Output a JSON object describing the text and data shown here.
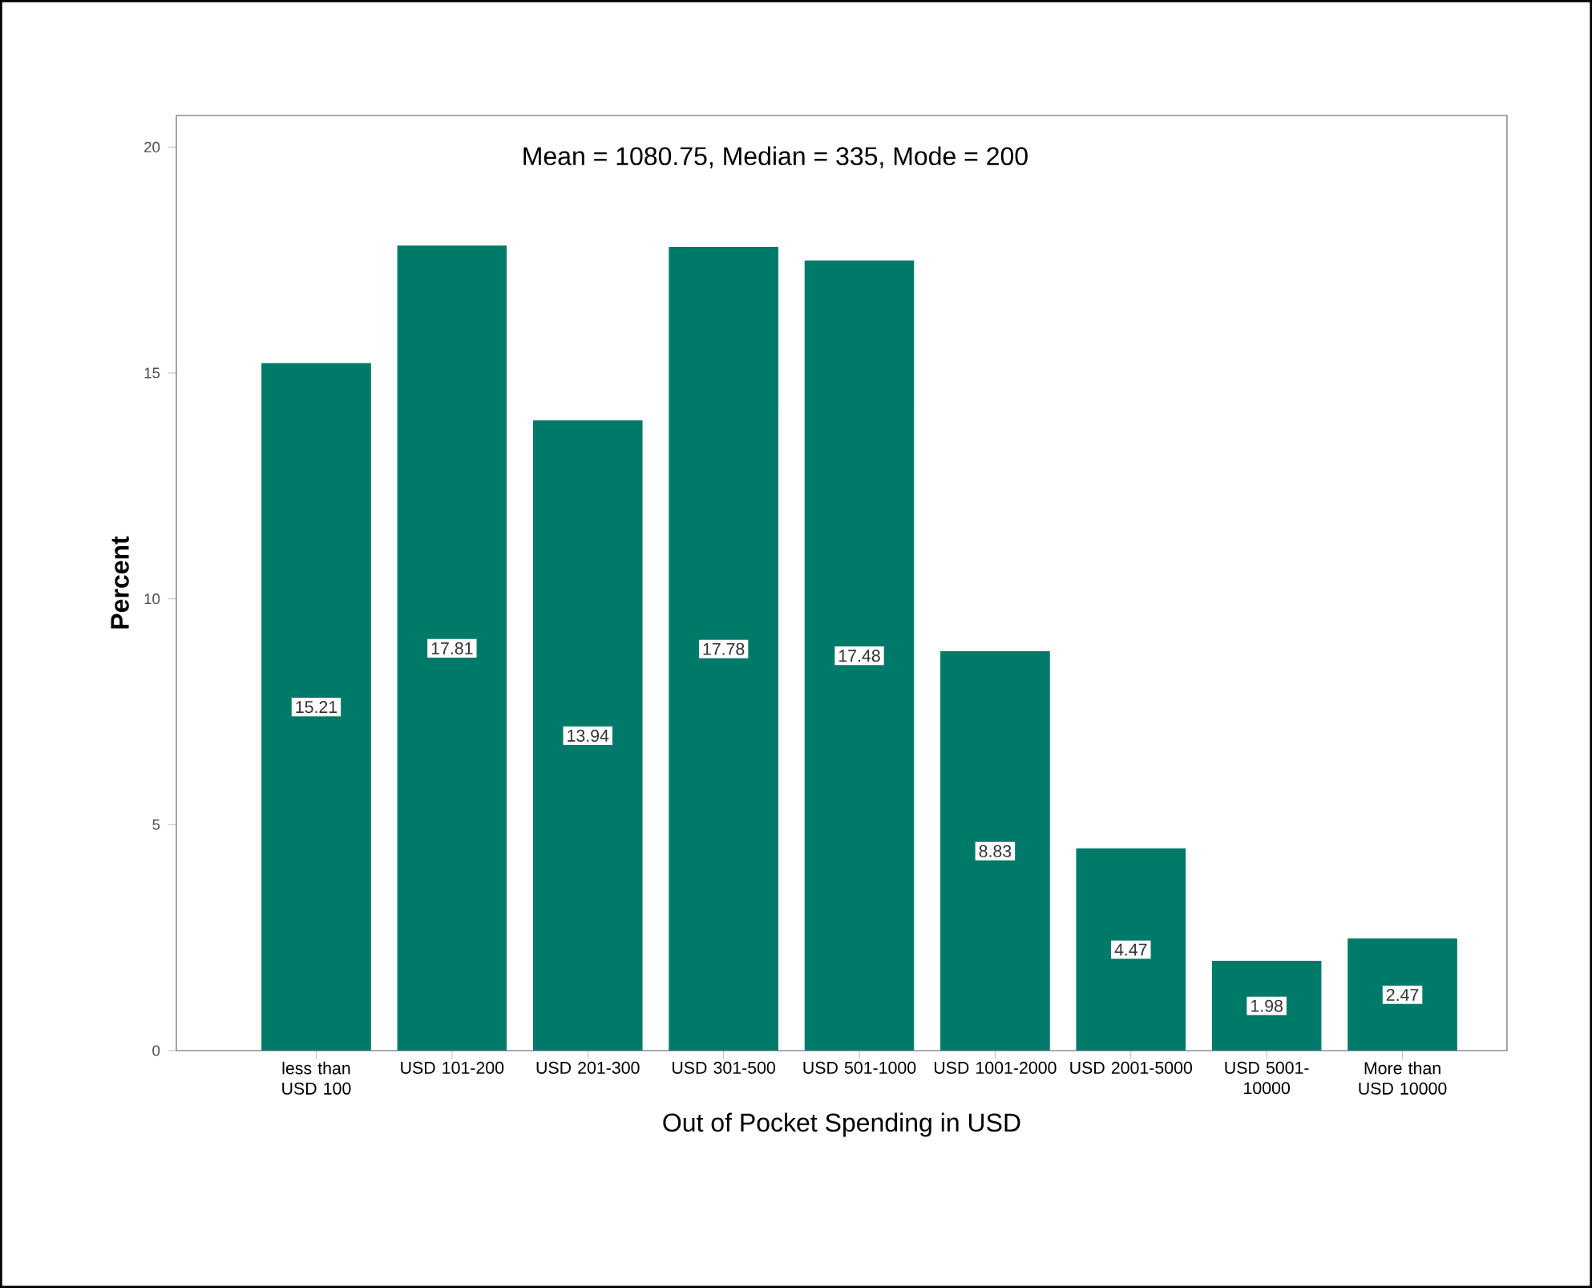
{
  "chart_data": {
    "type": "bar",
    "annotations": [
      "Mean = 1080.75, Median = 335, Mode = 200"
    ],
    "xlabel": "Out of Pocket Spending in USD",
    "ylabel": "Percent",
    "categories": [
      "less than USD 100",
      "USD 101-200",
      "USD 201-300",
      "USD 301-500",
      "USD 501-1000",
      "USD 1001-2000",
      "USD 2001-5000",
      "USD 5001-10000",
      "More than USD 10000"
    ],
    "values": [
      15.21,
      17.81,
      13.94,
      17.78,
      17.48,
      8.83,
      4.47,
      1.98,
      2.47
    ],
    "color": "#007a68",
    "ylim": [
      0,
      20.7
    ],
    "yticks": [
      0,
      5,
      10,
      15,
      20
    ],
    "data_labels": true,
    "grid": false
  }
}
